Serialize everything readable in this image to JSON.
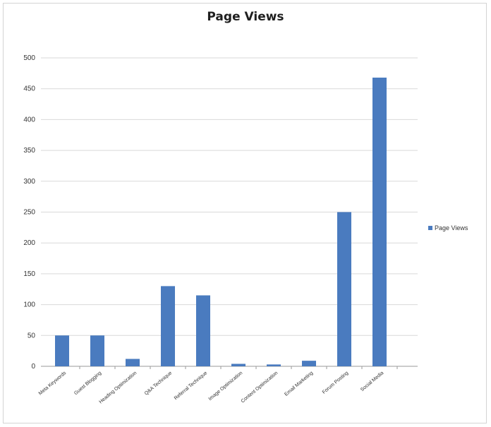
{
  "chart_data": {
    "type": "bar",
    "title": "Page Views",
    "categories": [
      "Meta Keywords",
      "Guest Blogging",
      "Heading Optimization",
      "Q&A Technique",
      "Referral Technique",
      "Image Optimization",
      "Content Optimization",
      "Email Marketing",
      "Forum Posting",
      "Social Media"
    ],
    "series": [
      {
        "name": "Page Views",
        "values": [
          50,
          50,
          12,
          130,
          115,
          4,
          3,
          9,
          250,
          468
        ]
      }
    ],
    "ylim": [
      0,
      500
    ],
    "yticks": [
      "0",
      "50",
      "100",
      "150",
      "200",
      "250",
      "300",
      "350",
      "400",
      "450",
      "500"
    ],
    "grid": true,
    "legend_position": "right",
    "bar_color": "#4a7bbf"
  }
}
